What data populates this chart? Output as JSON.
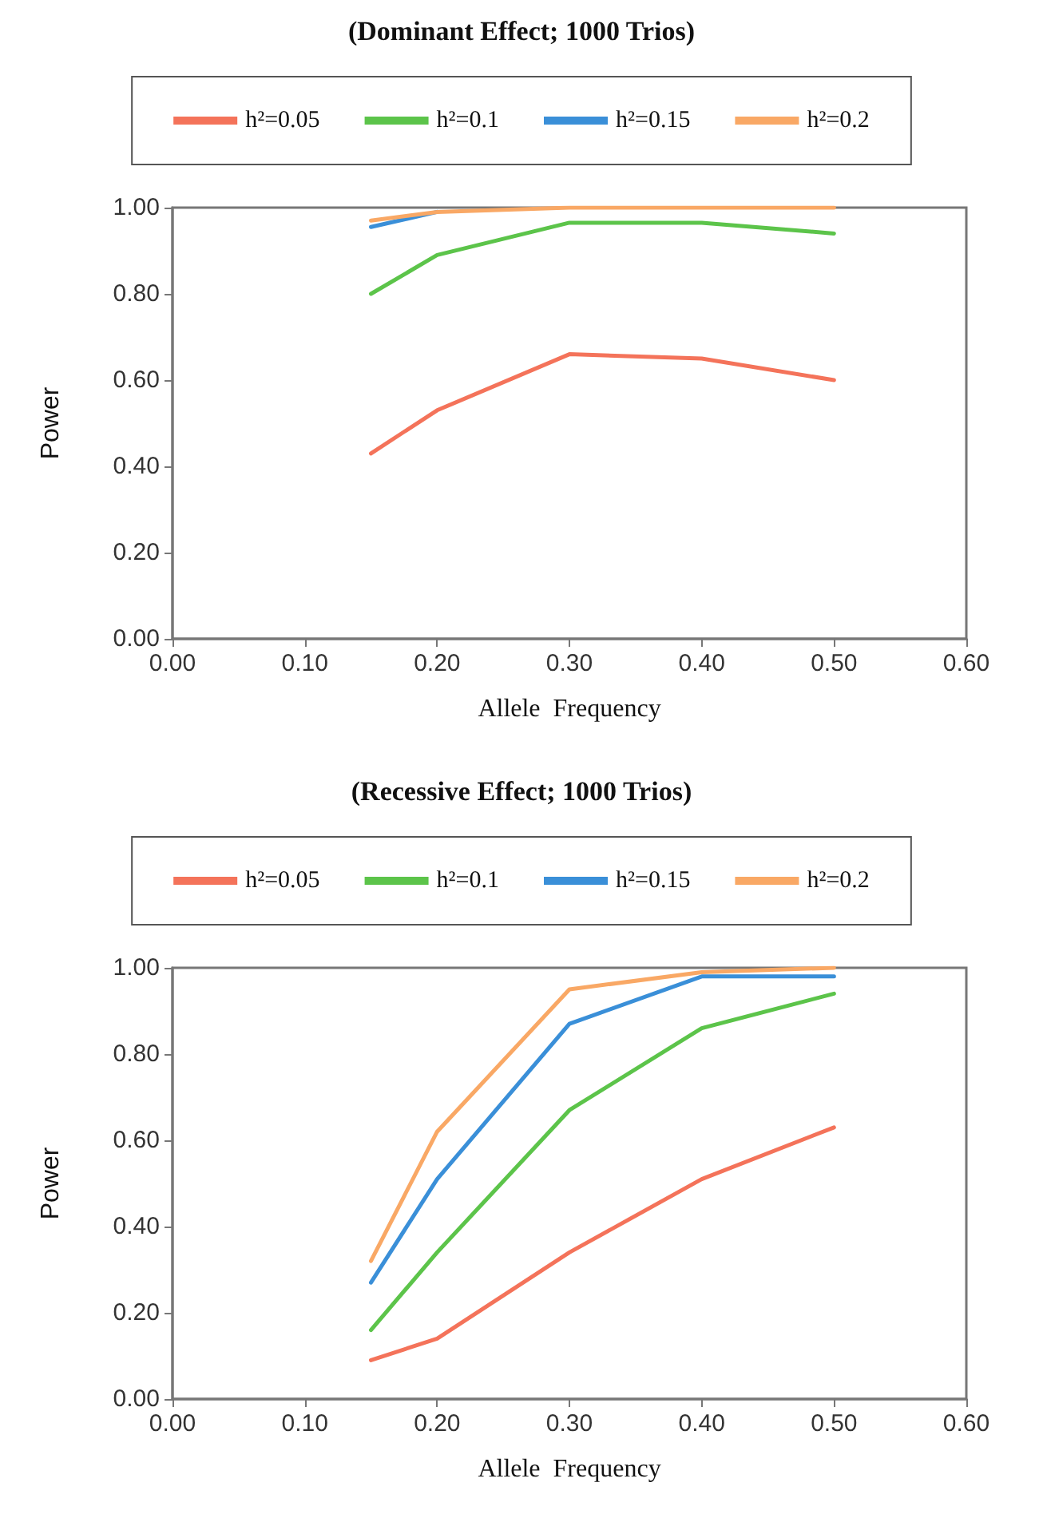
{
  "chart_data": [
    {
      "type": "line",
      "title": "(Dominant Effect; 1000 Trios)",
      "xlabel": "Allele  Frequency",
      "ylabel": "Power",
      "legend": "top",
      "marker": "none",
      "line_style": "solid",
      "grid": false,
      "x": [
        0.15,
        0.2,
        0.3,
        0.4,
        0.5
      ],
      "xlim": [
        0,
        0.6
      ],
      "xticks": [
        {
          "value": 0,
          "label": "0.00"
        },
        {
          "value": 0.1,
          "label": "0.10"
        },
        {
          "value": 0.2,
          "label": "0.20"
        },
        {
          "value": 0.3,
          "label": "0.30"
        },
        {
          "value": 0.4,
          "label": "0.40"
        },
        {
          "value": 0.5,
          "label": "0.50"
        },
        {
          "value": 0.6,
          "label": "0.60"
        }
      ],
      "ylim": [
        0,
        1
      ],
      "yticks": [
        {
          "value": 0,
          "label": "0.00"
        },
        {
          "value": 0.2,
          "label": "0.20"
        },
        {
          "value": 0.4,
          "label": "0.40"
        },
        {
          "value": 0.6,
          "label": "0.60"
        },
        {
          "value": 0.8,
          "label": "0.80"
        },
        {
          "value": 1,
          "label": "1.00"
        }
      ],
      "series": [
        {
          "name": "h²=0.05",
          "color": "#f4735a",
          "values": [
            0.43,
            0.53,
            0.66,
            0.65,
            0.6
          ]
        },
        {
          "name": "h²=0.1",
          "color": "#5cc44a",
          "values": [
            0.8,
            0.89,
            0.965,
            0.965,
            0.94
          ]
        },
        {
          "name": "h²=0.15",
          "color": "#3a8fd8",
          "values": [
            0.955,
            0.99,
            null,
            null,
            null
          ]
        },
        {
          "name": "h²=0.2",
          "color": "#f9a865",
          "values": [
            0.97,
            0.99,
            1.0,
            1.0,
            1.0
          ]
        }
      ]
    },
    {
      "type": "line",
      "title": "(Recessive Effect; 1000 Trios)",
      "xlabel": "Allele  Frequency",
      "ylabel": "Power",
      "legend": "top",
      "marker": "none",
      "line_style": "solid",
      "grid": false,
      "x": [
        0.15,
        0.2,
        0.3,
        0.4,
        0.5
      ],
      "xlim": [
        0,
        0.6
      ],
      "xticks": [
        {
          "value": 0,
          "label": "0.00"
        },
        {
          "value": 0.1,
          "label": "0.10"
        },
        {
          "value": 0.2,
          "label": "0.20"
        },
        {
          "value": 0.3,
          "label": "0.30"
        },
        {
          "value": 0.4,
          "label": "0.40"
        },
        {
          "value": 0.5,
          "label": "0.50"
        },
        {
          "value": 0.6,
          "label": "0.60"
        }
      ],
      "ylim": [
        0,
        1
      ],
      "yticks": [
        {
          "value": 0,
          "label": "0.00"
        },
        {
          "value": 0.2,
          "label": "0.20"
        },
        {
          "value": 0.4,
          "label": "0.40"
        },
        {
          "value": 0.6,
          "label": "0.60"
        },
        {
          "value": 0.8,
          "label": "0.80"
        },
        {
          "value": 1,
          "label": "1.00"
        }
      ],
      "series": [
        {
          "name": "h²=0.05",
          "color": "#f4735a",
          "values": [
            0.09,
            0.14,
            0.34,
            0.51,
            0.63
          ]
        },
        {
          "name": "h²=0.1",
          "color": "#5cc44a",
          "values": [
            0.16,
            0.34,
            0.67,
            0.86,
            0.94
          ]
        },
        {
          "name": "h²=0.15",
          "color": "#3a8fd8",
          "values": [
            0.27,
            0.51,
            0.87,
            0.98,
            0.98
          ]
        },
        {
          "name": "h²=0.2",
          "color": "#f9a865",
          "values": [
            0.32,
            0.62,
            0.95,
            0.99,
            1.0
          ]
        }
      ]
    }
  ]
}
